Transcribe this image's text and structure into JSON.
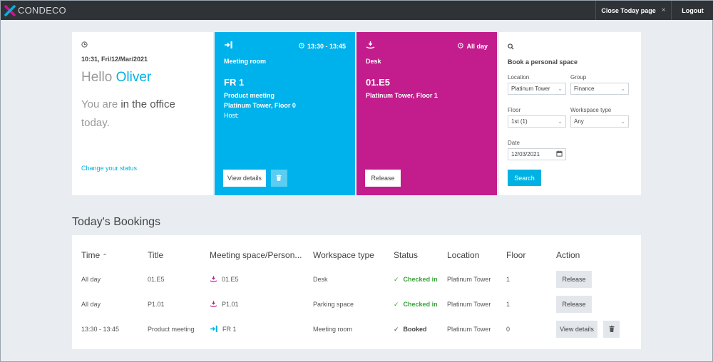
{
  "brand": {
    "name": "CONDECO",
    "colors": {
      "accent": "#00b2e3",
      "meeting": "#00b2ec",
      "desk": "#c31c8c",
      "topbar": "#2f3236"
    }
  },
  "topbar": {
    "close_today": "Close Today page",
    "close_icon": "×",
    "logout": "Logout"
  },
  "status": {
    "datetime": "10:31, Fri/12/Mar/2021",
    "hello": "Hello",
    "name": "Oliver",
    "you_are": "You are",
    "status_text": "in the office",
    "today": "today.",
    "change_link": "Change your status"
  },
  "meeting_card": {
    "time": "13:30 - 13:45",
    "type": "Meeting room",
    "name": "FR 1",
    "title": "Product meeting",
    "location": "Platinum Tower, Floor 0",
    "host": "Host:",
    "view_details": "View details"
  },
  "desk_card": {
    "time": "All day",
    "type": "Desk",
    "name": "01.E5",
    "location": "Platinum Tower, Floor 1",
    "release": "Release"
  },
  "book": {
    "title": "Book a personal space",
    "location_label": "Location",
    "location_value": "Platinum Tower",
    "group_label": "Group",
    "group_value": "Finance",
    "floor_label": "Floor",
    "floor_value": "1st (1)",
    "workspace_label": "Workspace type",
    "workspace_value": "Any",
    "date_label": "Date",
    "date_value": "12/03/2021",
    "search": "Search"
  },
  "bookings": {
    "section_title": "Today's Bookings",
    "columns": [
      "Time",
      "Title",
      "Meeting space/Person...",
      "Workspace type",
      "Status",
      "Location",
      "Floor",
      "Action"
    ],
    "sort_icon": "^",
    "rows": [
      {
        "time": "All day",
        "title": "01.E5",
        "space": "01.E5",
        "space_icon": "desk-icon",
        "workspace": "Desk",
        "status": "Checked in",
        "location": "Platinum Tower",
        "floor": "1",
        "action": "Release"
      },
      {
        "time": "All day",
        "title": "P1.01",
        "space": "P1.01",
        "space_icon": "parking-icon",
        "workspace": "Parking space",
        "status": "Checked in",
        "location": "Platinum Tower",
        "floor": "1",
        "action": "Release"
      },
      {
        "time": "13:30 - 13:45",
        "title": "Product meeting",
        "space": "FR 1",
        "space_icon": "meeting-room-icon",
        "workspace": "Meeting room",
        "status": "Booked",
        "location": "Platinum Tower",
        "floor": "0",
        "action": "View details"
      }
    ]
  }
}
